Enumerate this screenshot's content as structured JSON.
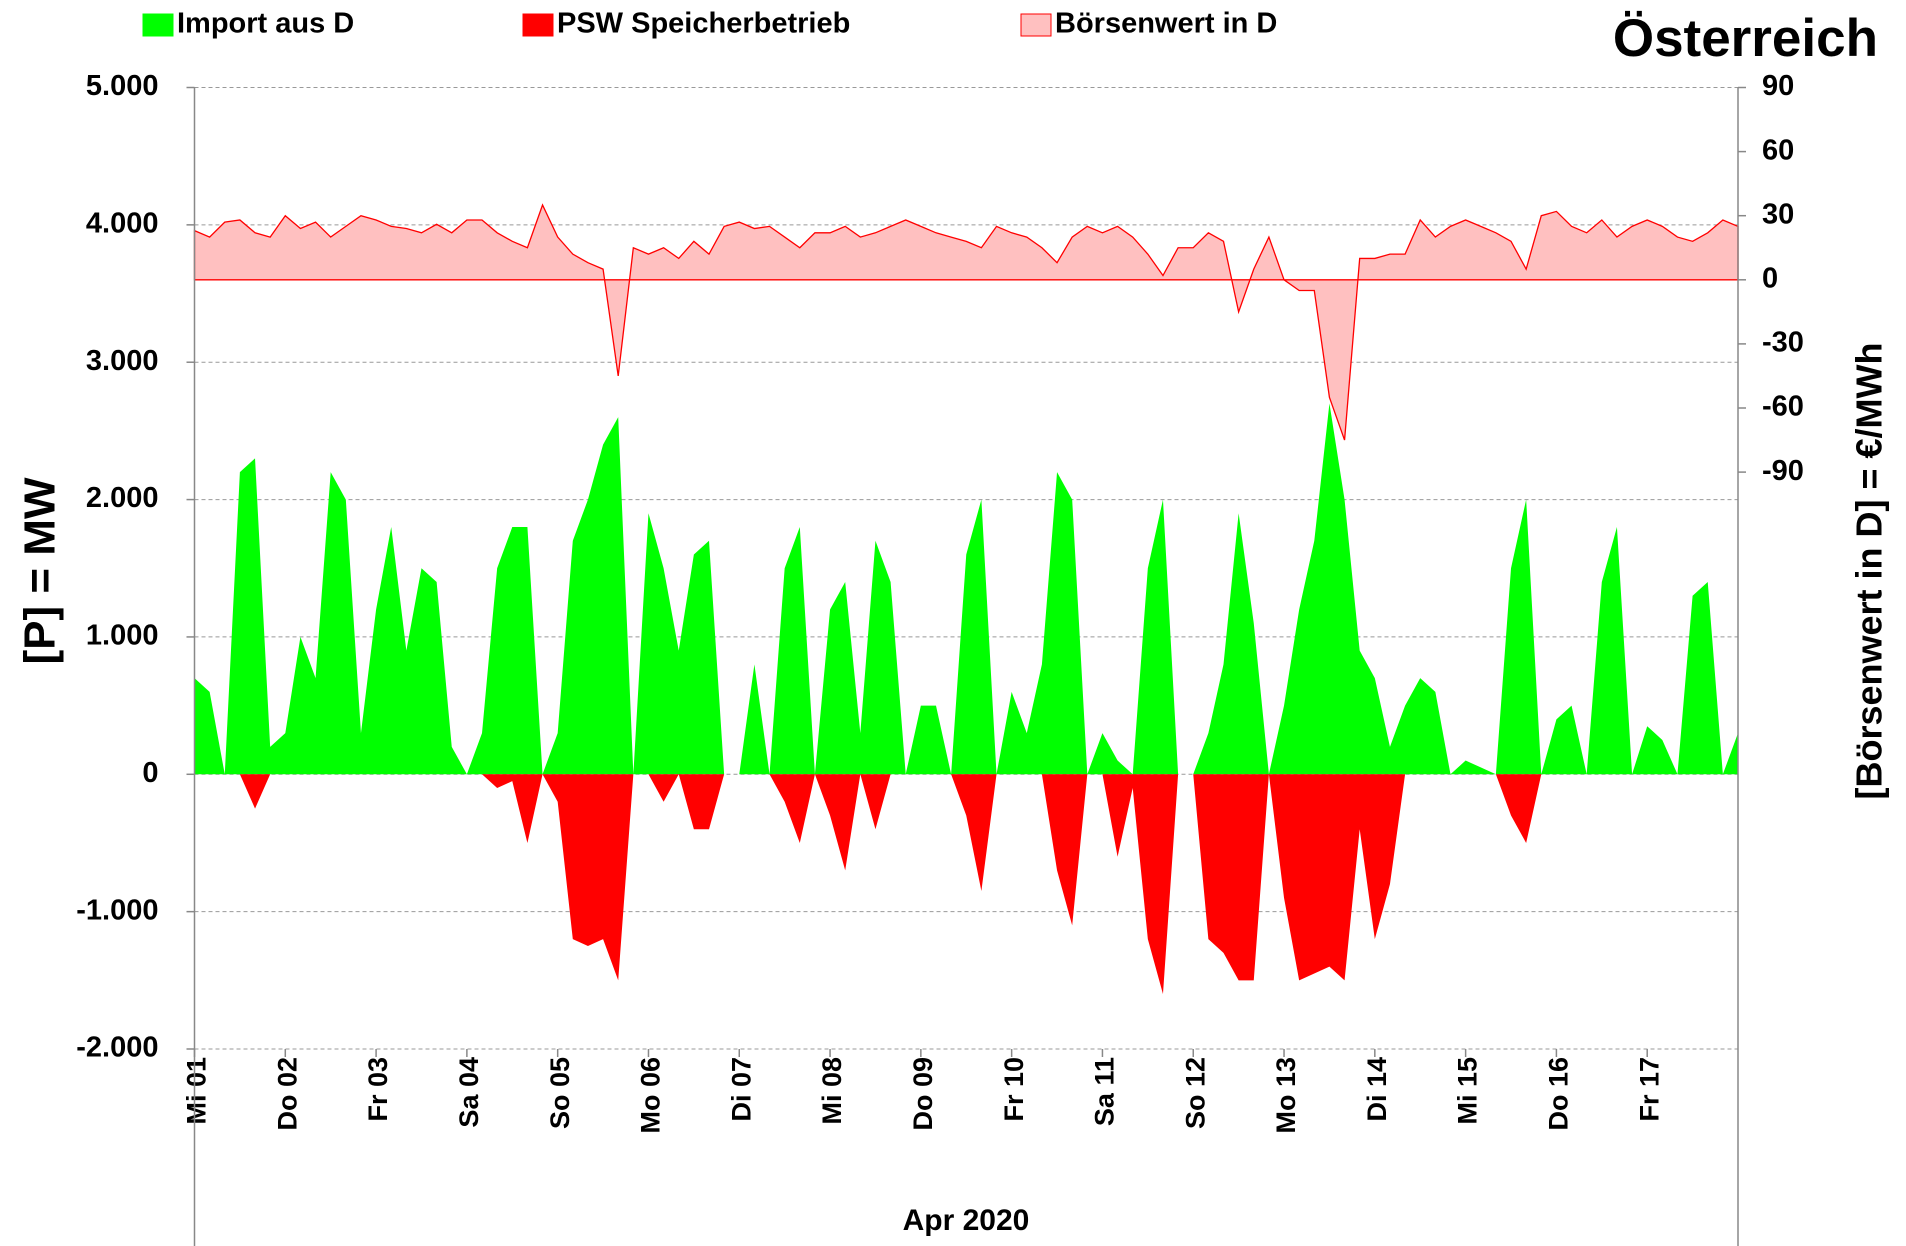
{
  "chart_data": {
    "type": "area",
    "title": "Österreich",
    "x_label": "Apr 2020",
    "y_label": "[P]  = MW",
    "y2_label": "[Börsenwert in D] =  €/MWh",
    "legend_position": "top",
    "grid": true,
    "negative_tick_color": "#ff0000",
    "x": [
      0,
      4,
      8,
      12,
      16,
      20,
      24,
      28,
      32,
      36,
      40,
      44,
      48,
      52,
      56,
      60,
      64,
      68,
      72,
      76,
      80,
      84,
      88,
      92,
      96,
      100,
      104,
      108,
      112,
      116,
      120,
      124,
      128,
      132,
      136,
      140,
      144,
      148,
      152,
      156,
      160,
      164,
      168,
      172,
      176,
      180,
      184,
      188,
      192,
      196,
      200,
      204,
      208,
      212,
      216,
      220,
      224,
      228,
      232,
      236,
      240,
      244,
      248,
      252,
      256,
      260,
      264,
      268,
      272,
      276,
      280,
      284,
      288,
      292,
      296,
      300,
      304,
      308,
      312,
      316,
      320,
      324,
      328,
      332,
      336,
      340,
      344,
      348,
      352,
      356,
      360,
      364,
      368,
      372,
      376,
      380,
      384,
      388,
      392,
      396,
      400,
      404,
      408
    ],
    "xlim": [
      0,
      408
    ],
    "xticks": [
      {
        "value": 0,
        "label": "Mi 01"
      },
      {
        "value": 24,
        "label": "Do 02"
      },
      {
        "value": 48,
        "label": "Fr 03"
      },
      {
        "value": 72,
        "label": "Sa 04"
      },
      {
        "value": 96,
        "label": "So 05"
      },
      {
        "value": 120,
        "label": "Mo 06"
      },
      {
        "value": 144,
        "label": "Di 07"
      },
      {
        "value": 168,
        "label": "Mi 08"
      },
      {
        "value": 192,
        "label": "Do 09"
      },
      {
        "value": 216,
        "label": "Fr 10"
      },
      {
        "value": 240,
        "label": "Sa 11"
      },
      {
        "value": 264,
        "label": "So 12"
      },
      {
        "value": 288,
        "label": "Mo 13"
      },
      {
        "value": 312,
        "label": "Di 14"
      },
      {
        "value": 336,
        "label": "Mi 15"
      },
      {
        "value": 360,
        "label": "Do 16"
      },
      {
        "value": 384,
        "label": "Fr 17"
      }
    ],
    "ylim": [
      -2000,
      5000
    ],
    "yticks": [
      {
        "value": 5000,
        "label": "5.000"
      },
      {
        "value": 4000,
        "label": "4.000"
      },
      {
        "value": 3000,
        "label": "3.000"
      },
      {
        "value": 2000,
        "label": "2.000"
      },
      {
        "value": 1000,
        "label": "1.000"
      },
      0,
      {
        "value": -1000,
        "label": "-1.000"
      },
      {
        "value": -2000,
        "label": "-2.000"
      }
    ],
    "y2lim": [
      -360,
      90
    ],
    "y2ticks": [
      90,
      60,
      30,
      0,
      -30,
      -60,
      -90
    ],
    "series": [
      {
        "name": "Import aus D",
        "color": "#00ff00",
        "fill": "#00ff00",
        "axis": "y",
        "values": [
          700,
          600,
          0,
          2200,
          2300,
          200,
          300,
          1000,
          700,
          2200,
          2000,
          300,
          1200,
          1800,
          900,
          1500,
          1400,
          200,
          0,
          300,
          1500,
          1800,
          1800,
          0,
          300,
          1700,
          2000,
          2400,
          2600,
          0,
          1900,
          1500,
          900,
          1600,
          1700,
          0,
          0,
          800,
          0,
          1500,
          1800,
          0,
          1200,
          1400,
          300,
          1700,
          1400,
          0,
          500,
          500,
          0,
          1600,
          2000,
          0,
          600,
          300,
          800,
          2200,
          2000,
          0,
          300,
          100,
          0,
          1500,
          2000,
          0,
          0,
          300,
          800,
          1900,
          1100,
          0,
          500,
          1200,
          1700,
          2700,
          2000,
          900,
          700,
          200,
          500,
          700,
          600,
          0,
          100,
          50,
          0,
          1500,
          2000,
          0,
          400,
          500,
          0,
          1400,
          1800,
          0,
          350,
          250,
          0,
          1300,
          1400,
          0,
          300
        ]
      },
      {
        "name": "PSW Speicherbetrieb",
        "color": "#ff0000",
        "fill": "#ff0000",
        "axis": "y",
        "values": [
          0,
          0,
          0,
          0,
          -250,
          0,
          0,
          0,
          0,
          0,
          0,
          0,
          0,
          0,
          0,
          0,
          0,
          0,
          0,
          0,
          -100,
          -50,
          -500,
          0,
          -200,
          -1200,
          -1250,
          -1200,
          -1500,
          0,
          0,
          -200,
          0,
          -400,
          -400,
          0,
          0,
          0,
          0,
          -200,
          -500,
          0,
          -300,
          -700,
          0,
          -400,
          0,
          0,
          0,
          0,
          0,
          -300,
          -850,
          0,
          0,
          0,
          0,
          -700,
          -1100,
          0,
          0,
          -600,
          -100,
          -1200,
          -1600,
          0,
          0,
          -1200,
          -1300,
          -1500,
          -1500,
          0,
          -900,
          -1500,
          -1450,
          -1400,
          -1500,
          -400,
          -1200,
          -800,
          0,
          0,
          0,
          0,
          0,
          0,
          0,
          -300,
          -500,
          0,
          0,
          0,
          0,
          0,
          0,
          0,
          0,
          0,
          0,
          0,
          0,
          0,
          0
        ]
      },
      {
        "name": "Börsenwert in D",
        "color": "#ff0000",
        "fill": "#ffc0c0",
        "axis": "y2",
        "values": [
          23,
          20,
          27,
          28,
          22,
          20,
          30,
          24,
          27,
          20,
          25,
          30,
          28,
          25,
          24,
          22,
          26,
          22,
          28,
          28,
          22,
          18,
          15,
          35,
          20,
          12,
          8,
          5,
          -45,
          15,
          12,
          15,
          10,
          18,
          12,
          25,
          27,
          24,
          25,
          20,
          15,
          22,
          22,
          25,
          20,
          22,
          25,
          28,
          25,
          22,
          20,
          18,
          15,
          25,
          22,
          20,
          15,
          8,
          20,
          25,
          22,
          25,
          20,
          12,
          2,
          15,
          15,
          22,
          18,
          -15,
          5,
          20,
          0,
          -5,
          -5,
          -55,
          -75,
          10,
          10,
          12,
          12,
          28,
          20,
          25,
          28,
          25,
          22,
          18,
          5,
          30,
          32,
          25,
          22,
          28,
          20,
          25,
          28,
          25,
          20,
          18,
          22,
          28,
          25
        ]
      }
    ]
  }
}
